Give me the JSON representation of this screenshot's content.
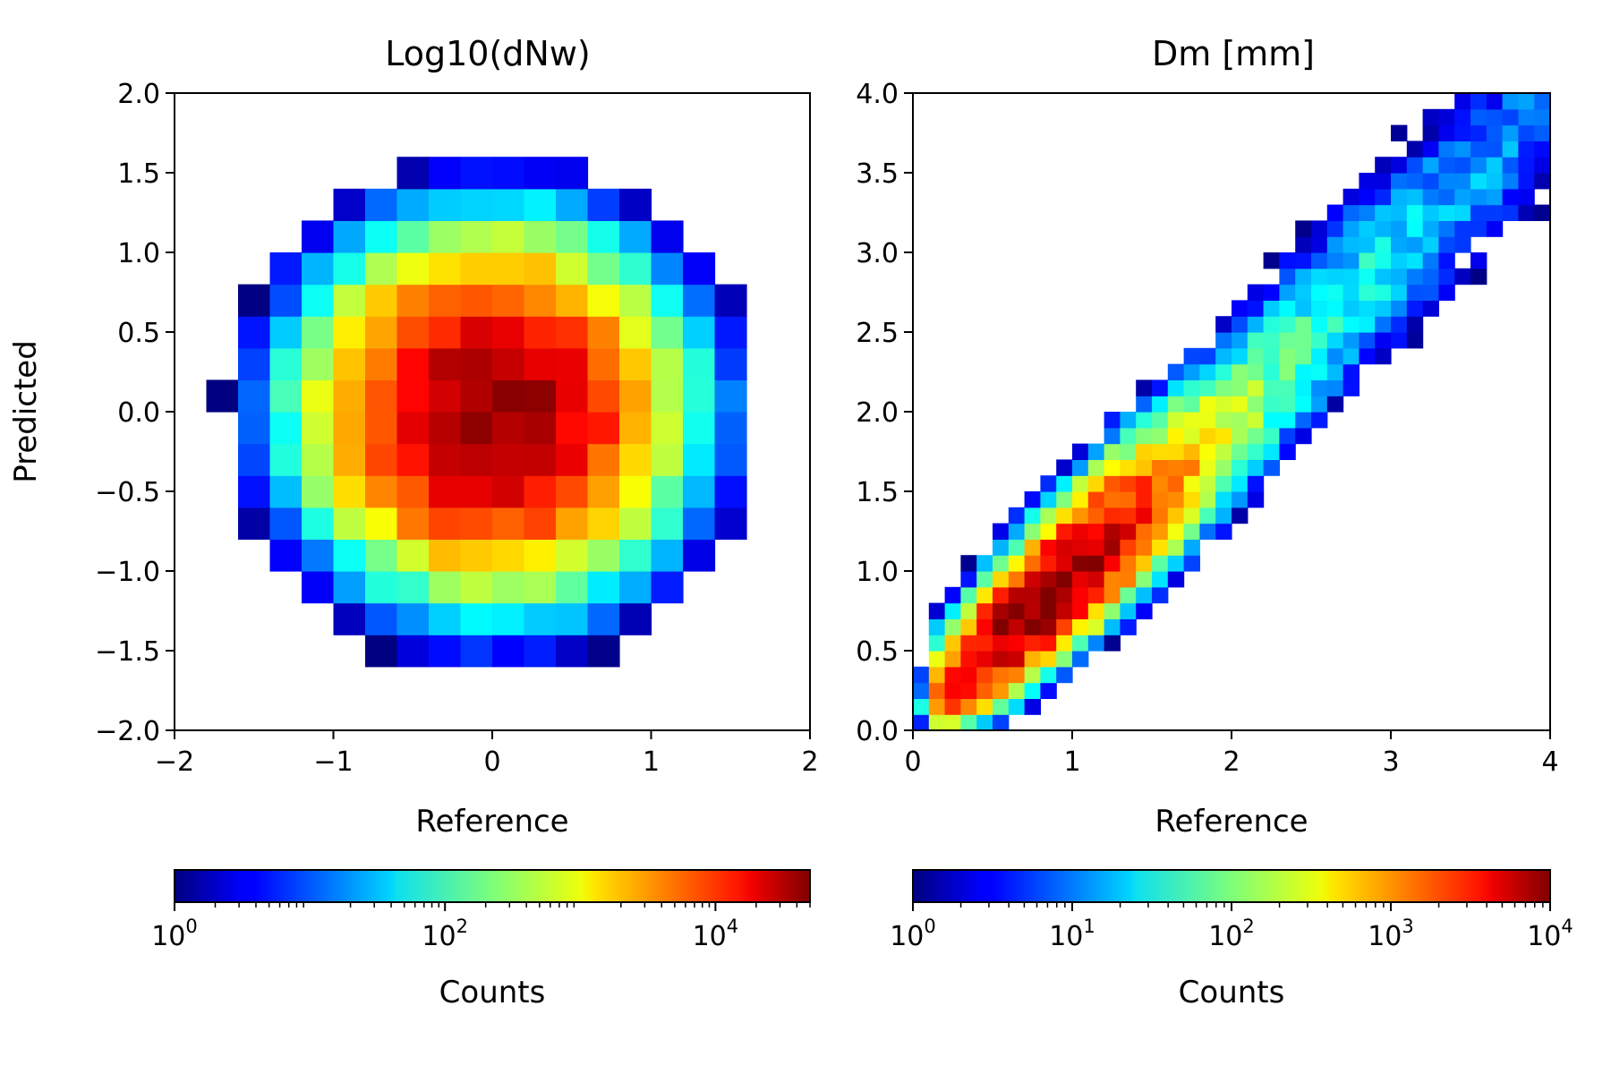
{
  "chart_data": [
    {
      "type": "heatmap",
      "title": "Log10(dNw)",
      "xlabel": "Reference",
      "ylabel": "Predicted",
      "xlim": [
        -2,
        2
      ],
      "ylim": [
        -2,
        2
      ],
      "x_ticks": [
        "−2",
        "−1",
        "0",
        "1",
        "2"
      ],
      "y_ticks": [
        "−2.0",
        "−1.5",
        "−1.0",
        "−0.5",
        "0.0",
        "0.5",
        "1.0",
        "1.5",
        "2.0"
      ],
      "bins": 20,
      "peak": [
        0,
        0
      ],
      "peak_log_count": 4.65,
      "spread_x": 0.75,
      "spread_y": 0.72,
      "colormap": "jet",
      "colorbar": {
        "label": "Counts",
        "scale": "log",
        "range": [
          1,
          50000
        ],
        "major_ticks": [
          {
            "mantissa": "10",
            "exp": "0",
            "log": 0
          },
          {
            "mantissa": "10",
            "exp": "2",
            "log": 2
          },
          {
            "mantissa": "10",
            "exp": "4",
            "log": 4
          }
        ]
      }
    },
    {
      "type": "heatmap",
      "title": "Dm [mm]",
      "xlabel": "Reference",
      "ylabel": "",
      "xlim": [
        0,
        4
      ],
      "ylim": [
        0,
        4
      ],
      "x_ticks": [
        "0",
        "1",
        "2",
        "3",
        "4"
      ],
      "y_ticks": [
        "0.0",
        "0.5",
        "1.0",
        "1.5",
        "2.0",
        "2.5",
        "3.0",
        "3.5",
        "4.0"
      ],
      "bins": 40,
      "peak": [
        0.85,
        0.85
      ],
      "peak_log_count": 4.0,
      "trend": "ridge along y = x from (0.85, 0.85) to (3.6, 3.6)",
      "colormap": "jet",
      "colorbar": {
        "label": "Counts",
        "scale": "log",
        "range": [
          1,
          10000
        ],
        "major_ticks": [
          {
            "mantissa": "10",
            "exp": "0",
            "log": 0
          },
          {
            "mantissa": "10",
            "exp": "1",
            "log": 1
          },
          {
            "mantissa": "10",
            "exp": "2",
            "log": 2
          },
          {
            "mantissa": "10",
            "exp": "3",
            "log": 3
          },
          {
            "mantissa": "10",
            "exp": "4",
            "log": 4
          }
        ]
      }
    }
  ]
}
